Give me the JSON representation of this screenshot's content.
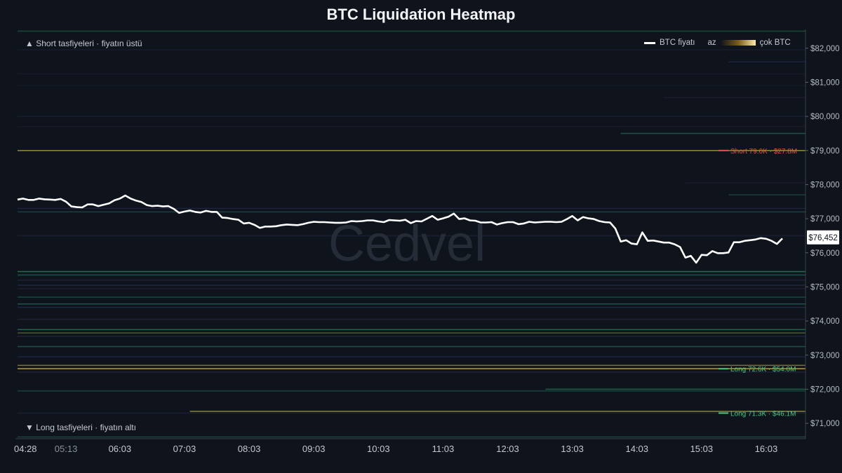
{
  "chart_data": {
    "type": "line",
    "title": "BTC Liquidation Heatmap",
    "watermark": "Cedvel",
    "region_labels": {
      "short": "▲ Short tasfiyeleri · fiyatın üstü",
      "long": "▼ Long tasfiyeleri · fiyatın altı"
    },
    "legend": {
      "price": "BTC fiyatı",
      "low": "az",
      "high": "çok BTC",
      "placement": "top-right"
    },
    "x_ticks": [
      "04:28",
      "05:13",
      "06:03",
      "07:03",
      "08:03",
      "09:03",
      "10:03",
      "11:03",
      "12:03",
      "13:03",
      "14:03",
      "15:03",
      "16:03"
    ],
    "x_tick_minutes": [
      0,
      45,
      95,
      155,
      215,
      275,
      335,
      395,
      455,
      515,
      575,
      635,
      695
    ],
    "y_ticks": [
      "$71,000",
      "$72,000",
      "$73,000",
      "$74,000",
      "$75,000",
      "$76,000",
      "$77,000",
      "$78,000",
      "$79,000",
      "$80,000",
      "$81,000",
      "$82,000"
    ],
    "y_tick_values": [
      71000,
      72000,
      73000,
      74000,
      75000,
      76000,
      77000,
      78000,
      79000,
      80000,
      81000,
      82000
    ],
    "ylim": [
      70550,
      82550
    ],
    "xlim_minutes": [
      0,
      710
    ],
    "current_price_label": "$76,452",
    "current_price": 76452,
    "series": [
      {
        "name": "BTC fiyatı",
        "color": "#ffffff",
        "points": [
          [
            0,
            77560
          ],
          [
            5,
            77590
          ],
          [
            10,
            77550
          ],
          [
            15,
            77550
          ],
          [
            20,
            77590
          ],
          [
            25,
            77570
          ],
          [
            30,
            77560
          ],
          [
            35,
            77550
          ],
          [
            40,
            77580
          ],
          [
            45,
            77500
          ],
          [
            50,
            77360
          ],
          [
            55,
            77340
          ],
          [
            60,
            77330
          ],
          [
            65,
            77420
          ],
          [
            70,
            77420
          ],
          [
            75,
            77370
          ],
          [
            80,
            77410
          ],
          [
            85,
            77450
          ],
          [
            90,
            77540
          ],
          [
            95,
            77590
          ],
          [
            100,
            77680
          ],
          [
            105,
            77590
          ],
          [
            110,
            77530
          ],
          [
            115,
            77490
          ],
          [
            120,
            77400
          ],
          [
            125,
            77370
          ],
          [
            130,
            77380
          ],
          [
            135,
            77360
          ],
          [
            140,
            77370
          ],
          [
            145,
            77290
          ],
          [
            150,
            77170
          ],
          [
            155,
            77210
          ],
          [
            160,
            77240
          ],
          [
            165,
            77200
          ],
          [
            170,
            77180
          ],
          [
            175,
            77230
          ],
          [
            180,
            77200
          ],
          [
            185,
            77200
          ],
          [
            190,
            77030
          ],
          [
            195,
            77020
          ],
          [
            200,
            76990
          ],
          [
            205,
            76970
          ],
          [
            210,
            76860
          ],
          [
            215,
            76880
          ],
          [
            220,
            76820
          ],
          [
            225,
            76730
          ],
          [
            230,
            76770
          ],
          [
            235,
            76770
          ],
          [
            240,
            76780
          ],
          [
            245,
            76810
          ],
          [
            250,
            76830
          ],
          [
            255,
            76820
          ],
          [
            260,
            76810
          ],
          [
            265,
            76840
          ],
          [
            270,
            76880
          ],
          [
            275,
            76910
          ],
          [
            280,
            76900
          ],
          [
            285,
            76900
          ],
          [
            290,
            76890
          ],
          [
            295,
            76880
          ],
          [
            300,
            76880
          ],
          [
            305,
            76890
          ],
          [
            310,
            76930
          ],
          [
            315,
            76920
          ],
          [
            320,
            76930
          ],
          [
            325,
            76950
          ],
          [
            330,
            76950
          ],
          [
            335,
            76920
          ],
          [
            340,
            76900
          ],
          [
            345,
            76960
          ],
          [
            350,
            76950
          ],
          [
            355,
            76940
          ],
          [
            360,
            76970
          ],
          [
            365,
            76870
          ],
          [
            370,
            76930
          ],
          [
            375,
            76920
          ],
          [
            380,
            77000
          ],
          [
            385,
            77080
          ],
          [
            390,
            76970
          ],
          [
            395,
            77010
          ],
          [
            400,
            77060
          ],
          [
            405,
            77150
          ],
          [
            410,
            76990
          ],
          [
            415,
            77010
          ],
          [
            420,
            76950
          ],
          [
            425,
            76940
          ],
          [
            430,
            76890
          ],
          [
            435,
            76890
          ],
          [
            440,
            76900
          ],
          [
            445,
            76830
          ],
          [
            450,
            76870
          ],
          [
            455,
            76900
          ],
          [
            460,
            76900
          ],
          [
            465,
            76840
          ],
          [
            470,
            76860
          ],
          [
            475,
            76910
          ],
          [
            480,
            76890
          ],
          [
            485,
            76900
          ],
          [
            490,
            76910
          ],
          [
            495,
            76910
          ],
          [
            500,
            76900
          ],
          [
            505,
            76910
          ],
          [
            510,
            76990
          ],
          [
            515,
            77080
          ],
          [
            520,
            76950
          ],
          [
            525,
            77050
          ],
          [
            530,
            77010
          ],
          [
            535,
            76990
          ],
          [
            540,
            76930
          ],
          [
            545,
            76900
          ],
          [
            550,
            76890
          ],
          [
            555,
            76710
          ],
          [
            560,
            76330
          ],
          [
            565,
            76370
          ],
          [
            570,
            76270
          ],
          [
            575,
            76250
          ],
          [
            580,
            76600
          ],
          [
            585,
            76350
          ],
          [
            590,
            76360
          ],
          [
            595,
            76330
          ],
          [
            600,
            76300
          ],
          [
            605,
            76300
          ],
          [
            610,
            76250
          ],
          [
            615,
            76170
          ],
          [
            620,
            75860
          ],
          [
            625,
            75910
          ],
          [
            630,
            75710
          ],
          [
            635,
            75940
          ],
          [
            640,
            75930
          ],
          [
            645,
            76050
          ],
          [
            650,
            75990
          ],
          [
            655,
            75990
          ],
          [
            660,
            76010
          ],
          [
            665,
            76310
          ],
          [
            670,
            76310
          ],
          [
            675,
            76350
          ],
          [
            680,
            76370
          ],
          [
            685,
            76390
          ],
          [
            690,
            76430
          ],
          [
            695,
            76410
          ],
          [
            700,
            76350
          ],
          [
            705,
            76260
          ],
          [
            710,
            76420
          ]
        ]
      }
    ],
    "liquidation_bands": [
      {
        "price": 82500,
        "from": 0,
        "intensity": 0.35,
        "color": "#2ca36b"
      },
      {
        "price": 81950,
        "from": 0,
        "intensity": 0.15,
        "color": "#3b4a8a"
      },
      {
        "price": 81600,
        "from": 660,
        "intensity": 0.3,
        "color": "#3b4a8a"
      },
      {
        "price": 81250,
        "from": 0,
        "intensity": 0.15,
        "color": "#4a3a7a"
      },
      {
        "price": 80900,
        "from": 0,
        "intensity": 0.12,
        "color": "#3b4a8a"
      },
      {
        "price": 80550,
        "from": 600,
        "intensity": 0.2,
        "color": "#4a3a7a"
      },
      {
        "price": 80000,
        "from": 0,
        "intensity": 0.2,
        "color": "#3b4a8a"
      },
      {
        "price": 79700,
        "from": 0,
        "intensity": 0.15,
        "color": "#4a3a7a"
      },
      {
        "price": 79500,
        "from": 560,
        "intensity": 0.45,
        "color": "#2c9a8a"
      },
      {
        "price": 79000,
        "from": 0,
        "intensity": 0.8,
        "color": "#a8a040"
      },
      {
        "price": 78050,
        "from": 620,
        "intensity": 0.2,
        "color": "#4a3a7a"
      },
      {
        "price": 77700,
        "from": 660,
        "intensity": 0.3,
        "color": "#2c9a8a"
      },
      {
        "price": 77300,
        "from": 0,
        "intensity": 0.3,
        "color": "#3b4a8a"
      },
      {
        "price": 77200,
        "from": 0,
        "intensity": 0.35,
        "color": "#2c9a8a"
      },
      {
        "price": 76500,
        "from": 0,
        "intensity": 0.2,
        "color": "#3b4a8a"
      },
      {
        "price": 75450,
        "from": 0,
        "intensity": 0.6,
        "color": "#2ca36b"
      },
      {
        "price": 75350,
        "from": 0,
        "intensity": 0.45,
        "color": "#2c9a8a"
      },
      {
        "price": 75200,
        "from": 0,
        "intensity": 0.3,
        "color": "#4a3a7a"
      },
      {
        "price": 75050,
        "from": 0,
        "intensity": 0.35,
        "color": "#3b4a8a"
      },
      {
        "price": 74950,
        "from": 0,
        "intensity": 0.25,
        "color": "#4a3a7a"
      },
      {
        "price": 74700,
        "from": 0,
        "intensity": 0.35,
        "color": "#2c9a8a"
      },
      {
        "price": 74500,
        "from": 0,
        "intensity": 0.45,
        "color": "#2c9a8a"
      },
      {
        "price": 74400,
        "from": 0,
        "intensity": 0.35,
        "color": "#3b4a8a"
      },
      {
        "price": 74050,
        "from": 0,
        "intensity": 0.3,
        "color": "#4a3a7a"
      },
      {
        "price": 73750,
        "from": 0,
        "intensity": 0.55,
        "color": "#2ca36b"
      },
      {
        "price": 73650,
        "from": 0,
        "intensity": 0.5,
        "color": "#8aa040"
      },
      {
        "price": 73550,
        "from": 0,
        "intensity": 0.3,
        "color": "#3b4a8a"
      },
      {
        "price": 73250,
        "from": 0,
        "intensity": 0.45,
        "color": "#2c9a8a"
      },
      {
        "price": 72950,
        "from": 0,
        "intensity": 0.3,
        "color": "#3b4a8a"
      },
      {
        "price": 72700,
        "from": 0,
        "intensity": 0.7,
        "color": "#a8a040"
      },
      {
        "price": 72600,
        "from": 0,
        "intensity": 0.85,
        "color": "#c9a545"
      },
      {
        "price": 72500,
        "from": 0,
        "intensity": 0.3,
        "color": "#4a3a7a"
      },
      {
        "price": 72000,
        "from": 490,
        "intensity": 0.5,
        "color": "#2ca36b"
      },
      {
        "price": 71950,
        "from": 0,
        "intensity": 0.35,
        "color": "#2c9a8a"
      },
      {
        "price": 71350,
        "from": 160,
        "intensity": 0.75,
        "color": "#a8a040"
      },
      {
        "price": 71300,
        "from": 0,
        "intensity": 0.25,
        "color": "#3b4a8a"
      },
      {
        "price": 70600,
        "from": 0,
        "intensity": 0.35,
        "color": "#2c9a8a"
      }
    ],
    "annotations": [
      {
        "text": "Short 79.0K · $27.8M",
        "price": 79000,
        "color": "#e0554a"
      },
      {
        "text": "Long 72.6K · $54.0M",
        "price": 72600,
        "color": "#4cc58a"
      },
      {
        "text": "Long 71.3K · $46.1M",
        "price": 71300,
        "color": "#4cc58a"
      }
    ]
  }
}
